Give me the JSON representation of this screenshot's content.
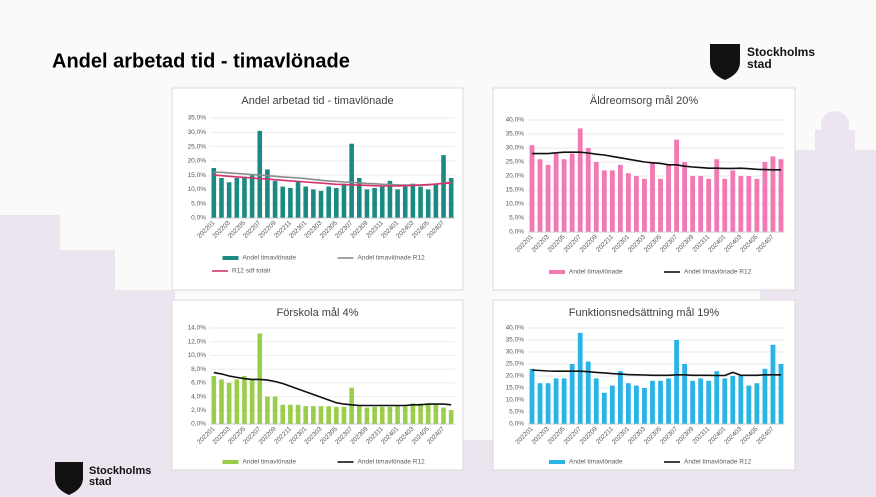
{
  "title": "Andel arbetad tid - timavlönade",
  "logo": {
    "line1": "Stockholms",
    "line2": "stad"
  },
  "chart_data": [
    {
      "type": "bar",
      "title": "Andel arbetad tid - timavlönade",
      "categories": [
        "202201",
        null,
        "202203",
        null,
        "202205",
        null,
        "202207",
        null,
        "202209",
        null,
        "202211",
        null,
        "202301",
        null,
        "202303",
        null,
        "202305",
        null,
        "202307",
        null,
        "202309",
        null,
        "202311",
        null,
        "202401",
        null,
        "202403",
        null,
        "202405",
        null,
        "202407",
        null
      ],
      "series": [
        {
          "name": "Andel timavlönade",
          "type": "bar",
          "color": "#1a8a82",
          "values": [
            17.5,
            14,
            12.5,
            14,
            14.5,
            15,
            30.5,
            17,
            13,
            11,
            10.5,
            13,
            11,
            10,
            9.5,
            11,
            10.5,
            12,
            26,
            14,
            10,
            10.5,
            11,
            13,
            10,
            11,
            12,
            11,
            10,
            12,
            22,
            14
          ]
        },
        {
          "name": "Andel timavlönade R12",
          "type": "line",
          "color": "#8c8c8c",
          "values": [
            16,
            16,
            15.8,
            15.6,
            15.4,
            15.2,
            15,
            14.8,
            14.6,
            14.4,
            14.2,
            14,
            13.8,
            13.5,
            13.2,
            13,
            12.8,
            12.6,
            12.5,
            12.3,
            12.1,
            12,
            11.8,
            11.7,
            11.6,
            11.5,
            11.5,
            11.5,
            11.6,
            11.8,
            12.2,
            12.5
          ]
        },
        {
          "name": "R12 sdf totalt",
          "type": "line",
          "color": "#d6336c",
          "values": [
            15,
            14.8,
            14.6,
            14.4,
            14.2,
            14,
            13.8,
            13.6,
            13.4,
            13.2,
            13,
            12.8,
            12.6,
            12.4,
            12.2,
            12,
            11.8,
            11.7,
            11.6,
            11.5,
            11.4,
            11.3,
            11.2,
            11.2,
            11.2,
            11.3,
            11.4,
            11.5,
            11.7,
            11.9,
            12.1,
            12.3
          ]
        }
      ],
      "ylim": [
        0,
        35
      ],
      "yticks": [
        {
          "value": 0,
          "label": "0,0%"
        },
        {
          "value": 5,
          "label": "5,0%"
        },
        {
          "value": 10,
          "label": "10,0%"
        },
        {
          "value": 15,
          "label": "15,0%"
        },
        {
          "value": 20,
          "label": "20,0%"
        },
        {
          "value": 25,
          "label": "25,0%"
        },
        {
          "value": 30,
          "label": "30,0%"
        },
        {
          "value": 35,
          "label": "35,0%"
        }
      ],
      "grid": true,
      "legend": "bottom"
    },
    {
      "type": "bar",
      "title": "Äldreomsorg mål 20%",
      "categories": [
        "202201",
        null,
        "202203",
        null,
        "202205",
        null,
        "202207",
        null,
        "202209",
        null,
        "202211",
        null,
        "202301",
        null,
        "202303",
        null,
        "202305",
        null,
        "202307",
        null,
        "202309",
        null,
        "202311",
        null,
        "202401",
        null,
        "202403",
        null,
        "202405",
        null,
        "202407",
        null
      ],
      "series": [
        {
          "name": "Andel timavlönade",
          "type": "bar",
          "color": "#f07ab4",
          "values": [
            31,
            26,
            24,
            28,
            26,
            28,
            37,
            30,
            25,
            22,
            22,
            24,
            21,
            20,
            19,
            25,
            19,
            24,
            33,
            25,
            20,
            20,
            19,
            26,
            19,
            22,
            20,
            20,
            19,
            25,
            27,
            26
          ]
        },
        {
          "name": "Andel timavlönade R12",
          "type": "line",
          "color": "#111111",
          "values": [
            28,
            28,
            28,
            28.3,
            28.5,
            28.5,
            28.5,
            28.2,
            27.8,
            27.5,
            27,
            26.5,
            26,
            25.5,
            25,
            24.7,
            24.5,
            24,
            24,
            23.5,
            23.2,
            23,
            22.8,
            22.8,
            22.7,
            22.7,
            22.8,
            22.6,
            22.4,
            22.3,
            22.2,
            22.2
          ]
        }
      ],
      "ylim": [
        0,
        40
      ],
      "yticks": [
        {
          "value": 0,
          "label": "0,0%"
        },
        {
          "value": 5,
          "label": "5,0%"
        },
        {
          "value": 10,
          "label": "10,0%"
        },
        {
          "value": 15,
          "label": "15,0%"
        },
        {
          "value": 20,
          "label": "20,0%"
        },
        {
          "value": 25,
          "label": "25,0%"
        },
        {
          "value": 30,
          "label": "30,0%"
        },
        {
          "value": 35,
          "label": "35,0%"
        },
        {
          "value": 40,
          "label": "40,0%"
        }
      ],
      "grid": true,
      "legend": "bottom"
    },
    {
      "type": "bar",
      "title": "Förskola mål 4%",
      "categories": [
        "202201",
        null,
        "202203",
        null,
        "202205",
        null,
        "202207",
        null,
        "202209",
        null,
        "202211",
        null,
        "202301",
        null,
        "202303",
        null,
        "202305",
        null,
        "202307",
        null,
        "202309",
        null,
        "202311",
        null,
        "202401",
        null,
        "202403",
        null,
        "202405",
        null,
        "202407",
        null
      ],
      "series": [
        {
          "name": "Andel timavlönade",
          "type": "bar",
          "color": "#9acd4a",
          "values": [
            7,
            6.5,
            6,
            6.5,
            7,
            6.5,
            13.2,
            4,
            4,
            2.8,
            2.8,
            2.8,
            2.6,
            2.6,
            2.6,
            2.6,
            2.5,
            2.5,
            5.3,
            2.6,
            2.4,
            2.5,
            2.5,
            2.5,
            2.6,
            2.6,
            3,
            3,
            3,
            2.8,
            2.4,
            2
          ]
        },
        {
          "name": "Andel timavlönade R12",
          "type": "line",
          "color": "#111111",
          "values": [
            7.5,
            7.3,
            7,
            6.8,
            6.6,
            6.5,
            6.5,
            6.4,
            6.2,
            5.9,
            5.5,
            5.1,
            4.7,
            4.3,
            3.9,
            3.5,
            3.1,
            2.9,
            2.8,
            2.7,
            2.7,
            2.7,
            2.7,
            2.7,
            2.7,
            2.7,
            2.8,
            2.8,
            2.9,
            2.9,
            2.9,
            2.8
          ]
        }
      ],
      "ylim": [
        0,
        14
      ],
      "yticks": [
        {
          "value": 0,
          "label": "0,0%"
        },
        {
          "value": 2,
          "label": "2,0%"
        },
        {
          "value": 4,
          "label": "4,0%"
        },
        {
          "value": 6,
          "label": "6,0%"
        },
        {
          "value": 8,
          "label": "8,0%"
        },
        {
          "value": 10,
          "label": "10,0%"
        },
        {
          "value": 12,
          "label": "12,0%"
        },
        {
          "value": 14,
          "label": "14,0%"
        }
      ],
      "grid": true,
      "legend": "bottom"
    },
    {
      "type": "bar",
      "title": "Funktionsnedsättning mål 19%",
      "categories": [
        "202201",
        null,
        "202203",
        null,
        "202205",
        null,
        "202207",
        null,
        "202209",
        null,
        "202211",
        null,
        "202301",
        null,
        "202303",
        null,
        "202305",
        null,
        "202307",
        null,
        "202309",
        null,
        "202311",
        null,
        "202401",
        null,
        "202403",
        null,
        "202405",
        null,
        "202407",
        null
      ],
      "series": [
        {
          "name": "Andel timavlönade",
          "type": "bar",
          "color": "#2bb3e6",
          "values": [
            23,
            17,
            17,
            19,
            19,
            25,
            38,
            26,
            19,
            13,
            16,
            22,
            17,
            16,
            15,
            18,
            18,
            19,
            35,
            25,
            18,
            19,
            18,
            22,
            19,
            20,
            20,
            16,
            17,
            23,
            33,
            25
          ]
        },
        {
          "name": "Andel timavlönade R12",
          "type": "line",
          "color": "#111111",
          "values": [
            22.5,
            22.3,
            22.1,
            22,
            22,
            22,
            22,
            21.8,
            21.5,
            21.3,
            21,
            20.8,
            20.6,
            20.5,
            20.4,
            20.3,
            20.3,
            20.3,
            20.5,
            20.5,
            20.3,
            20.3,
            20.3,
            20.2,
            20.2,
            21.5,
            20.3,
            20.3,
            20.3,
            20.5,
            20.5,
            20.5
          ]
        }
      ],
      "ylim": [
        0,
        40
      ],
      "yticks": [
        {
          "value": 0,
          "label": "0,0%"
        },
        {
          "value": 5,
          "label": "5,0%"
        },
        {
          "value": 10,
          "label": "10,0%"
        },
        {
          "value": 15,
          "label": "15,0%"
        },
        {
          "value": 20,
          "label": "20,0%"
        },
        {
          "value": 25,
          "label": "25,0%"
        },
        {
          "value": 30,
          "label": "30,0%"
        },
        {
          "value": 35,
          "label": "35,0%"
        },
        {
          "value": 40,
          "label": "40,0%"
        }
      ],
      "grid": true,
      "legend": "bottom"
    }
  ]
}
